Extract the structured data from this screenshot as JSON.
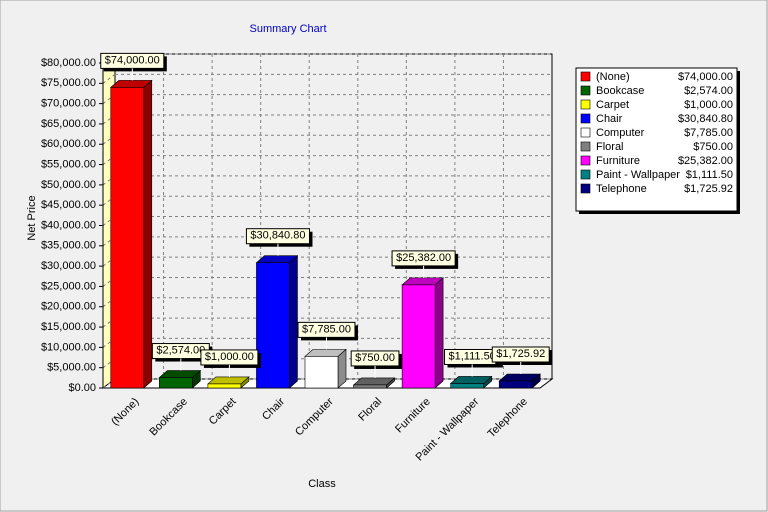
{
  "chart_data": {
    "type": "bar",
    "title": "Summary Chart",
    "x_label": "Class",
    "y_label": "Net Price",
    "categories": [
      "(None)",
      "Bookcase",
      "Carpet",
      "Chair",
      "Computer",
      "Floral",
      "Furniture",
      "Paint - Wallpaper",
      "Telephone"
    ],
    "values": [
      74000,
      2574,
      1000,
      30840.8,
      7785,
      750,
      25382,
      1111.5,
      1725.92
    ],
    "value_labels": [
      "$74,000.00",
      "$2,574.00",
      "$1,000.00",
      "$30,840.80",
      "$7,785.00",
      "$750.00",
      "$25,382.00",
      "$1,111.50",
      "$1,725.92"
    ],
    "colors": [
      "#ff0000",
      "#006400",
      "#ffff00",
      "#0000ff",
      "#ffffff",
      "#808080",
      "#ff00ff",
      "#008080",
      "#000080"
    ],
    "ylim": [
      0,
      80000
    ],
    "yticks": [
      {
        "value": 0,
        "label": "$0.00"
      },
      {
        "value": 5000,
        "label": "$5,000.00"
      },
      {
        "value": 10000,
        "label": "$10,000.00"
      },
      {
        "value": 15000,
        "label": "$15,000.00"
      },
      {
        "value": 20000,
        "label": "$20,000.00"
      },
      {
        "value": 25000,
        "label": "$25,000.00"
      },
      {
        "value": 30000,
        "label": "$30,000.00"
      },
      {
        "value": 35000,
        "label": "$35,000.00"
      },
      {
        "value": 40000,
        "label": "$40,000.00"
      },
      {
        "value": 45000,
        "label": "$45,000.00"
      },
      {
        "value": 50000,
        "label": "$50,000.00"
      },
      {
        "value": 55000,
        "label": "$55,000.00"
      },
      {
        "value": 60000,
        "label": "$60,000.00"
      },
      {
        "value": 65000,
        "label": "$65,000.00"
      },
      {
        "value": 70000,
        "label": "$70,000.00"
      },
      {
        "value": 75000,
        "label": "$75,000.00"
      },
      {
        "value": 80000,
        "label": "$80,000.00"
      }
    ],
    "grid": true,
    "legend": "right"
  }
}
